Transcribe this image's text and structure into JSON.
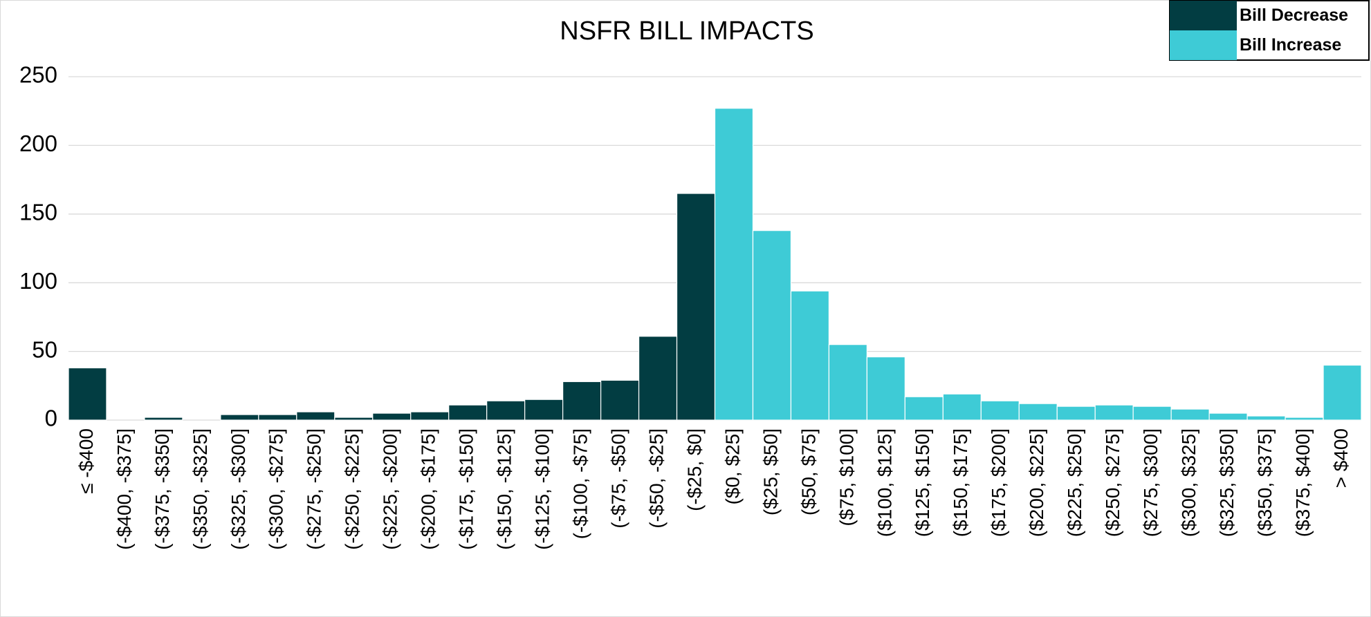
{
  "chart_data": {
    "type": "bar",
    "title": "NSFR BILL IMPACTS",
    "categories": [
      "≤ -$400",
      "(-$400, -$375]",
      "(-$375, -$350]",
      "(-$350, -$325]",
      "(-$325, -$300]",
      "(-$300, -$275]",
      "(-$275, -$250]",
      "(-$250, -$225]",
      "(-$225, -$200]",
      "(-$200, -$175]",
      "(-$175, -$150]",
      "(-$150, -$125]",
      "(-$125, -$100]",
      "(-$100, -$75]",
      "(-$75, -$50]",
      "(-$50, -$25]",
      "(-$25, $0]",
      "($0, $25]",
      "($25, $50]",
      "($50, $75]",
      "($75, $100]",
      "($100, $125]",
      "($125, $150]",
      "($150, $175]",
      "($175, $200]",
      "($200, $225]",
      "($225, $250]",
      "($250, $275]",
      "($275, $300]",
      "($300, $325]",
      "($325, $350]",
      "($350, $375]",
      "($375, $400]",
      "> $400"
    ],
    "series": [
      {
        "name": "Bill Decrease",
        "color": "#023d42",
        "values": [
          38,
          0,
          2,
          0,
          4,
          4,
          6,
          2,
          5,
          6,
          11,
          14,
          15,
          28,
          29,
          61,
          165,
          null,
          null,
          null,
          null,
          null,
          null,
          null,
          null,
          null,
          null,
          null,
          null,
          null,
          null,
          null,
          null,
          null
        ]
      },
      {
        "name": "Bill Increase",
        "color": "#3ecbd6",
        "values": [
          null,
          null,
          null,
          null,
          null,
          null,
          null,
          null,
          null,
          null,
          null,
          null,
          null,
          null,
          null,
          null,
          null,
          227,
          138,
          94,
          55,
          46,
          17,
          19,
          14,
          12,
          10,
          11,
          10,
          8,
          5,
          3,
          2,
          40
        ]
      }
    ],
    "ylim": [
      0,
      250
    ],
    "yticks": [
      0,
      50,
      100,
      150,
      200,
      250
    ],
    "grid": true,
    "legend": "upper right"
  }
}
